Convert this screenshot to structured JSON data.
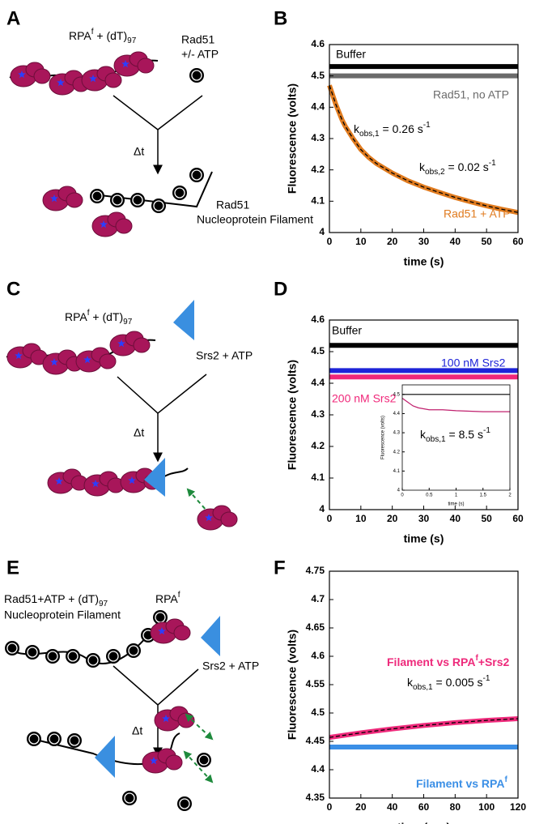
{
  "diagrams": [
    {
      "panel": "A",
      "substrate": [
        [
          "RPA",
          ""
        ],
        [
          "f",
          "sup"
        ],
        [
          " + (dT)",
          ""
        ],
        [
          "97",
          "sub"
        ]
      ],
      "reagent": [
        "Rad51",
        "+/- ATP"
      ],
      "delay": "Δt",
      "product": [
        "Rad51",
        "Nucleoprotein Filament"
      ]
    },
    {
      "panel": "C",
      "substrate": [
        [
          "RPA",
          ""
        ],
        [
          "f",
          "sup"
        ],
        [
          " + (dT)",
          ""
        ],
        [
          "97",
          "sub"
        ]
      ],
      "reagent": "Srs2 + ATP",
      "delay": "Δt"
    },
    {
      "panel": "E",
      "substrate": [
        [
          "Rad51+ATP + (dT)",
          ""
        ],
        [
          "97",
          "sub"
        ]
      ],
      "substrate2": "Nucleoprotein Filament",
      "protein": [
        [
          "RPA",
          ""
        ],
        [
          "f",
          "sup"
        ]
      ],
      "reagent": "Srs2 + ATP",
      "delay": "Δt"
    }
  ],
  "chart_data": [
    {
      "type": "line",
      "panel": "B",
      "xlabel": "time (s)",
      "ylabel": "Fluorescence (volts)",
      "xlim": [
        0,
        60
      ],
      "xticks": [
        0,
        10,
        20,
        30,
        40,
        50,
        60
      ],
      "ylim": [
        4,
        4.6
      ],
      "yticks": [
        4,
        4.1,
        4.2,
        4.3,
        4.4,
        4.5,
        4.6
      ],
      "x": [
        0,
        1,
        2,
        3,
        4,
        5,
        7.5,
        10,
        12.5,
        15,
        20,
        25,
        30,
        35,
        40,
        45,
        50,
        55,
        60
      ],
      "series": [
        {
          "name": "Buffer",
          "color": "#000000",
          "values": [
            4.53,
            4.53,
            4.53,
            4.53,
            4.53,
            4.53,
            4.53,
            4.53,
            4.53,
            4.53,
            4.53,
            4.53,
            4.53,
            4.53,
            4.53,
            4.53,
            4.53,
            4.53,
            4.53
          ]
        },
        {
          "name": "Rad51, no ATP",
          "color": "#6b6b6b",
          "values": [
            4.5,
            4.5,
            4.5,
            4.5,
            4.5,
            4.5,
            4.5,
            4.5,
            4.5,
            4.5,
            4.5,
            4.5,
            4.5,
            4.5,
            4.5,
            4.5,
            4.5,
            4.5,
            4.5
          ]
        },
        {
          "name": "Rad51 + ATP",
          "color": "#e07b1f",
          "values": [
            4.47,
            4.44,
            4.41,
            4.385,
            4.36,
            4.34,
            4.3,
            4.265,
            4.24,
            4.22,
            4.19,
            4.165,
            4.145,
            4.128,
            4.112,
            4.098,
            4.085,
            4.074,
            4.064
          ]
        },
        {
          "color": "#000000",
          "dashed": true,
          "values": [
            4.47,
            4.44,
            4.41,
            4.385,
            4.36,
            4.34,
            4.3,
            4.265,
            4.24,
            4.22,
            4.19,
            4.165,
            4.145,
            4.128,
            4.112,
            4.098,
            4.085,
            4.074,
            4.064
          ]
        }
      ],
      "annotations": [
        [
          [
            "k",
            ""
          ],
          [
            "obs,1",
            "sub"
          ],
          [
            " = 0.26 s",
            ""
          ],
          [
            "-1",
            "sup"
          ]
        ],
        [
          [
            "k",
            ""
          ],
          [
            "obs,2",
            "sub"
          ],
          [
            " = 0.02 s",
            ""
          ],
          [
            "-1",
            "sup"
          ]
        ]
      ]
    },
    {
      "type": "line",
      "panel": "D",
      "xlabel": "time (s)",
      "ylabel": "Fluorescence (volts)",
      "xlim": [
        0,
        60
      ],
      "xticks": [
        0,
        10,
        20,
        30,
        40,
        50,
        60
      ],
      "ylim": [
        4,
        4.6
      ],
      "yticks": [
        4,
        4.1,
        4.2,
        4.3,
        4.4,
        4.5,
        4.6
      ],
      "x": [
        0,
        10,
        20,
        30,
        40,
        50,
        60
      ],
      "series": [
        {
          "name": "Buffer",
          "color": "#000000",
          "values": [
            4.52,
            4.52,
            4.52,
            4.52,
            4.52,
            4.52,
            4.52
          ]
        },
        {
          "name": "100 nM Srs2",
          "color": "#1e24d8",
          "values": [
            4.44,
            4.44,
            4.44,
            4.44,
            4.44,
            4.44,
            4.44
          ]
        },
        {
          "name": "200 nM Srs2",
          "color": "#f0287a",
          "values": [
            4.42,
            4.42,
            4.42,
            4.42,
            4.42,
            4.42,
            4.42
          ]
        }
      ],
      "inset": {
        "type": "line",
        "xlabel": "time (s)",
        "ylabel": "Fluorescence (volts)",
        "xlim": [
          0,
          2
        ],
        "xticks": [
          0,
          0.5,
          1,
          1.5,
          2
        ],
        "ylim": [
          4,
          4.55
        ],
        "yticks": [
          4,
          4.1,
          4.2,
          4.3,
          4.4,
          4.5
        ],
        "x": [
          0,
          0.1,
          0.2,
          0.3,
          0.5,
          0.75,
          1,
          1.5,
          2
        ],
        "series": [
          {
            "color": "#000000",
            "values": [
              4.5,
              4.5,
              4.5,
              4.5,
              4.5,
              4.5,
              4.5,
              4.5,
              4.5
            ]
          },
          {
            "color": "#c0206e",
            "values": [
              4.48,
              4.46,
              4.44,
              4.43,
              4.42,
              4.42,
              4.415,
              4.41,
              4.41
            ]
          }
        ],
        "annotations": [
          [
            [
              "k",
              ""
            ],
            [
              "obs,1",
              "sub"
            ],
            [
              " = 8.5 s",
              ""
            ],
            [
              "-1",
              "sup"
            ]
          ]
        ]
      }
    },
    {
      "type": "line",
      "panel": "F",
      "xlabel": "time (sec)",
      "ylabel": "Fluorescence (volts)",
      "bold_labels": true,
      "xlim": [
        0,
        120
      ],
      "xticks": [
        0,
        20,
        40,
        60,
        80,
        100,
        120
      ],
      "ylim": [
        4.35,
        4.75
      ],
      "yticks": [
        4.35,
        4.4,
        4.45,
        4.5,
        4.55,
        4.6,
        4.65,
        4.7,
        4.75
      ],
      "x": [
        0,
        20,
        40,
        60,
        80,
        100,
        120
      ],
      "series": [
        {
          "name": [
            [
              "Filament vs RPA",
              ""
            ],
            [
              "f",
              "sup"
            ],
            [
              "+Srs2",
              ""
            ]
          ],
          "color": "#ee2a7b",
          "values": [
            4.457,
            4.465,
            4.472,
            4.478,
            4.483,
            4.487,
            4.49
          ]
        },
        {
          "name": [
            [
              "Filament vs RPA",
              ""
            ],
            [
              "f",
              "sup"
            ]
          ],
          "color": "#3b8fe6",
          "values": [
            4.44,
            4.44,
            4.44,
            4.44,
            4.44,
            4.44,
            4.44
          ]
        },
        {
          "color": "#000000",
          "dashed": true,
          "values": [
            4.457,
            4.465,
            4.472,
            4.478,
            4.483,
            4.487,
            4.49
          ]
        }
      ],
      "annotations": [
        [
          [
            "k",
            ""
          ],
          [
            "obs,1",
            "sub"
          ],
          [
            " = 0.005 s",
            ""
          ],
          [
            "-1",
            "sup"
          ]
        ]
      ]
    }
  ]
}
